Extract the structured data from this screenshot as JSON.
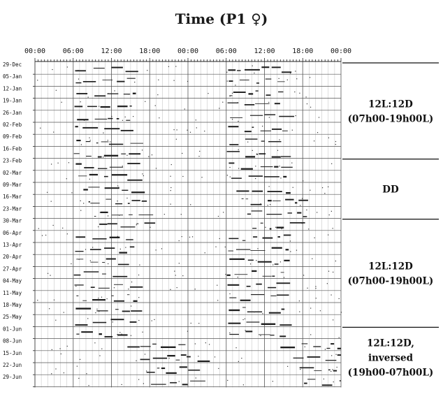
{
  "chart_data": {
    "type": "actogram",
    "title": "Time (P1 ♀)",
    "double_plotted": true,
    "x_tick_labels": [
      "00:00",
      "06:00",
      "12:00",
      "18:00",
      "00:00",
      "06:00",
      "12:00",
      "18:00",
      "00:00"
    ],
    "x_range_hours": [
      0,
      48
    ],
    "row_labels": [
      "29-Dec",
      "05-Jan",
      "12-Jan",
      "19-Jan",
      "26-Jan",
      "02-Feb",
      "09-Feb",
      "16-Feb",
      "23-Feb",
      "02-Mar",
      "09-Mar",
      "16-Mar",
      "23-Mar",
      "30-Mar",
      "06-Apr",
      "13-Apr",
      "20-Apr",
      "27-Apr",
      "04-May",
      "11-May",
      "18-May",
      "25-May",
      "01-Jun",
      "08-Jun",
      "15-Jun",
      "22-Jun",
      "29-Jun"
    ],
    "conditions": [
      {
        "lines": [
          "12L:12D",
          "(07h00-19h00L)"
        ],
        "start_row": 0,
        "end_row": 8
      },
      {
        "lines": [
          "DD"
        ],
        "start_row": 8,
        "end_row": 13
      },
      {
        "lines": [
          "12L:12D",
          "(07h00-19h00L)"
        ],
        "start_row": 13,
        "end_row": 22
      },
      {
        "lines": [
          "12L:12D,",
          "inversed",
          "(19h00-07h00L)"
        ],
        "start_row": 22,
        "end_row": 27
      }
    ],
    "activity_onset_hours": [
      6.3,
      6.4,
      6.5,
      6.2,
      6.6,
      6.3,
      6.5,
      6.1,
      6.4,
      6.8,
      7.6,
      8.4,
      9.3,
      10.1,
      6.4,
      6.3,
      6.5,
      6.1,
      6.2,
      6.5,
      6.4,
      6.3,
      6.5,
      14.5,
      16.5,
      17.5,
      18.2
    ],
    "activity_duration_hours": 9
  }
}
